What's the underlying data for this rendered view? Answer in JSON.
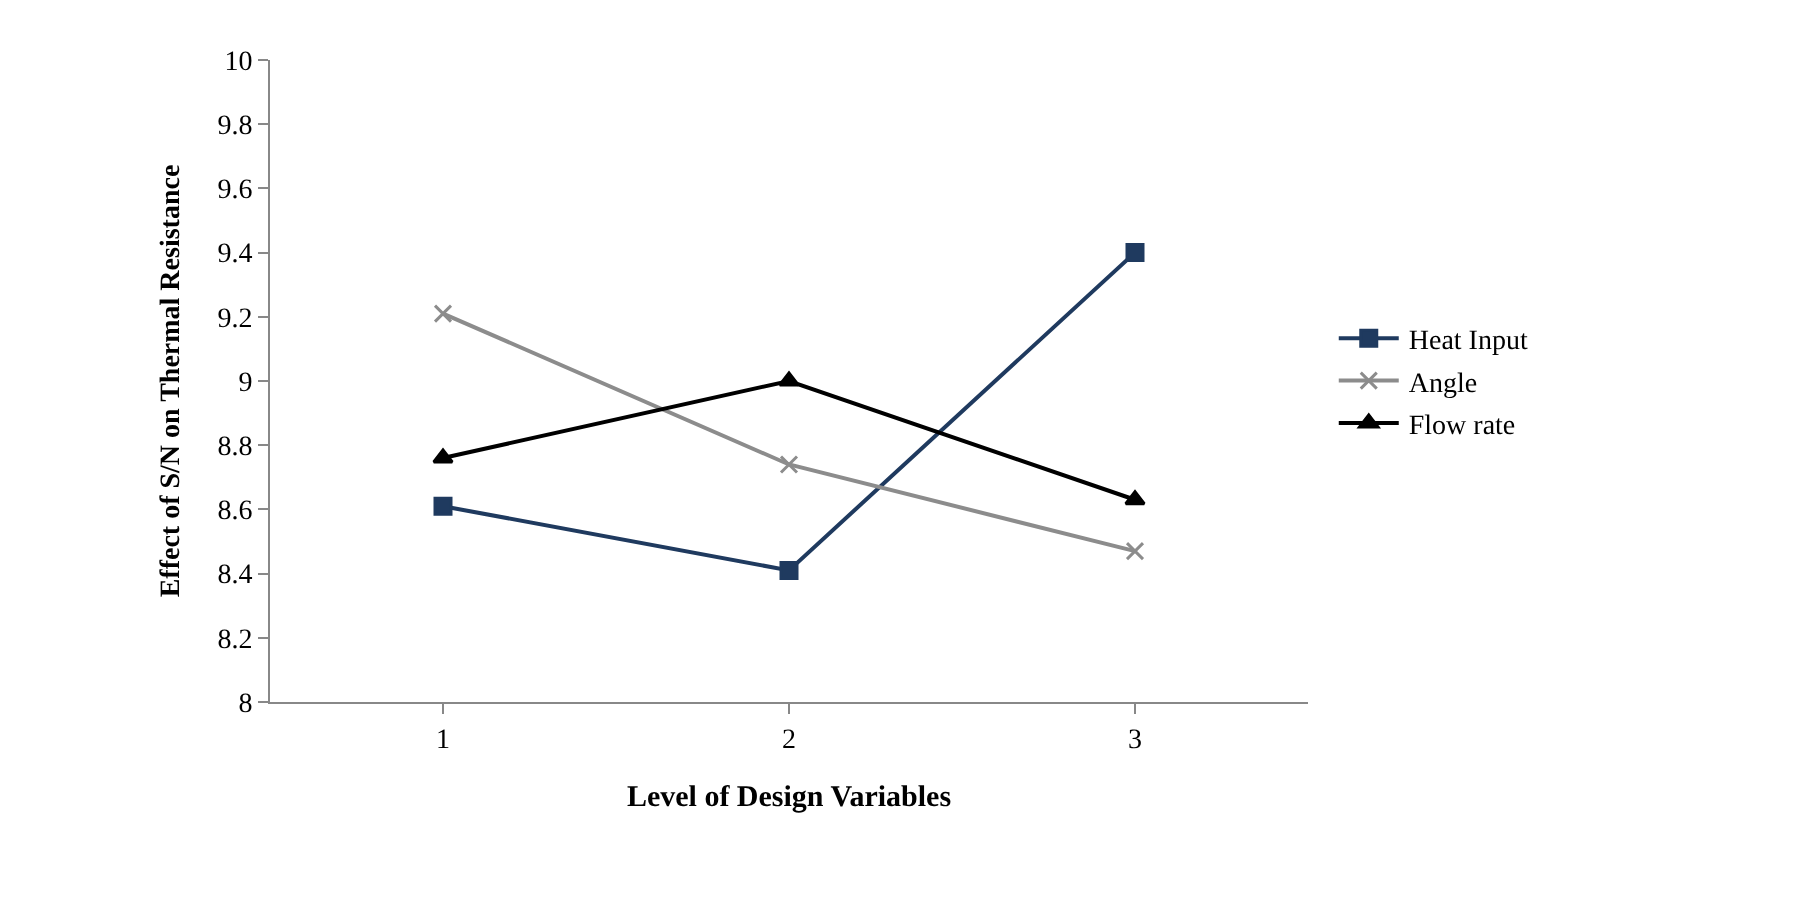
{
  "chart_data": {
    "type": "line",
    "xlabel": "Level of Design Variables",
    "ylabel": "Effect of S/N on Thermal Resistance",
    "categories": [
      "1",
      "2",
      "3"
    ],
    "series": [
      {
        "name": "Heat Input",
        "color": "#1f3a5f",
        "marker": "square",
        "values": [
          8.61,
          8.41,
          9.4
        ]
      },
      {
        "name": "Angle",
        "color": "#8c8c8c",
        "marker": "cross",
        "values": [
          9.21,
          8.74,
          8.47
        ]
      },
      {
        "name": "Flow rate",
        "color": "#000000",
        "marker": "triangle",
        "values": [
          8.76,
          9.0,
          8.63
        ]
      }
    ],
    "ylim": [
      8,
      10
    ],
    "yticks": [
      8,
      8.2,
      8.4,
      8.6,
      8.8,
      9,
      9.2,
      9.4,
      9.6,
      9.8,
      10
    ],
    "grid": false,
    "legend": "right"
  }
}
